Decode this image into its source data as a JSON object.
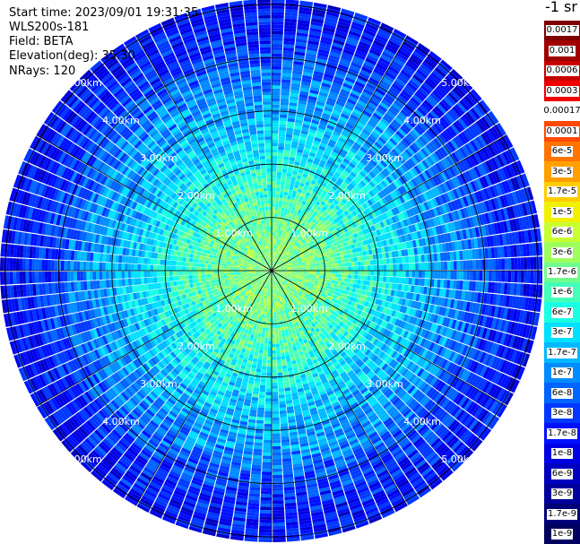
{
  "header": {
    "start_time": "Start time: 2023/09/01 19:31:35",
    "instrument": "WLS200s-181",
    "field": "Field: BETA",
    "elevation": "Elevation(deg): 35.30",
    "nrays": "NRays: 120"
  },
  "colorbar": {
    "unit": "-1 sr",
    "labels": [
      "0.0017",
      "0.001",
      "0.0006",
      "0.0003",
      "0.00017",
      "0.0001",
      "6e-5",
      "3e-5",
      "1.7e-5",
      "1e-5",
      "6e-6",
      "3e-6",
      "1.7e-6",
      "1e-6",
      "6e-7",
      "3e-7",
      "1.7e-7",
      "1e-7",
      "6e-8",
      "3e-8",
      "1.7e-8",
      "1e-8",
      "6e-9",
      "3e-9",
      "1.7e-9",
      "1e-9"
    ],
    "colors": [
      "#7f0000",
      "#a00000",
      "#c80000",
      "#f00000",
      "#ffffff",
      "#ff4800",
      "#ff7400",
      "#ffa000",
      "#ffcc00",
      "#f0f000",
      "#c8ff30",
      "#9cff5c",
      "#70ff8c",
      "#44ffb8",
      "#18ffe4",
      "#00e0ff",
      "#00b8ff",
      "#008cff",
      "#0064ff",
      "#0038ff",
      "#0010ff",
      "#0000e4",
      "#0000c0",
      "#00009c",
      "#000078",
      "#000060"
    ]
  },
  "chart_data": {
    "type": "ppi",
    "field": "BETA",
    "nrays": 120,
    "range_unit": "km",
    "range_rings_km": [
      1,
      2,
      3,
      4,
      5
    ],
    "max_range_km": 5.1,
    "ring_labels": [
      "1.00km",
      "2.00km",
      "3.00km",
      "4.00km",
      "5.00km"
    ],
    "azimuth_spokes_deg": [
      0,
      30,
      60,
      90,
      120,
      150
    ],
    "value_profile": {
      "range_km": [
        0,
        0.5,
        1.0,
        1.5,
        2.0,
        2.5,
        3.0,
        3.5,
        4.0,
        4.5,
        5.0
      ],
      "beta_sr": [
        2e-06,
        2e-06,
        1.5e-06,
        9e-07,
        5e-07,
        2.5e-07,
        1.5e-07,
        9e-08,
        4e-08,
        2e-08,
        1.5e-08
      ]
    },
    "grid": true
  }
}
